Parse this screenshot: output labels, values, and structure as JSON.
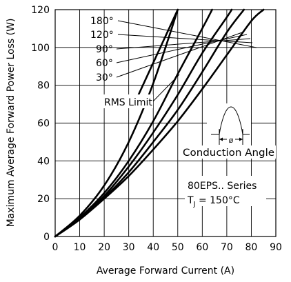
{
  "chart_data": {
    "type": "line",
    "xlabel": "Average Forward Current (A)",
    "ylabel": "Maximum Average Forward Power Loss (W)",
    "xlim": [
      0,
      90
    ],
    "ylim": [
      0,
      120
    ],
    "x_ticks": [
      "0",
      "10",
      "20",
      "30",
      "40",
      "50",
      "60",
      "70",
      "80",
      "90"
    ],
    "y_ticks": [
      "0",
      "20",
      "40",
      "60",
      "80",
      "100",
      "120"
    ],
    "grid": true,
    "series": [
      {
        "name": "180°",
        "x": [
          0,
          10,
          20,
          30,
          40,
          50,
          60,
          70,
          80,
          85
        ],
        "y": [
          0,
          9,
          20,
          32,
          46,
          61,
          78,
          96,
          114,
          120
        ]
      },
      {
        "name": "120°",
        "x": [
          0,
          10,
          20,
          30,
          40,
          50,
          60,
          70,
          77
        ],
        "y": [
          0,
          9,
          20.5,
          34,
          50,
          67,
          87,
          108,
          120
        ]
      },
      {
        "name": "90°",
        "x": [
          0,
          10,
          20,
          30,
          40,
          50,
          60,
          70,
          72
        ],
        "y": [
          0,
          9.5,
          21.5,
          37,
          55,
          75,
          97,
          116,
          120
        ]
      },
      {
        "name": "60°",
        "x": [
          0,
          10,
          20,
          30,
          40,
          50,
          60,
          64
        ],
        "y": [
          0,
          10,
          23,
          40,
          61,
          86,
          110,
          120
        ]
      },
      {
        "name": "30°",
        "x": [
          0,
          10,
          20,
          30,
          40,
          50
        ],
        "y": [
          0,
          11,
          27,
          50,
          81,
          120
        ]
      }
    ],
    "rms_limit": {
      "label": "RMS Limit",
      "x": [
        34,
        50
      ],
      "y": [
        75,
        120
      ]
    },
    "annotations": {
      "legend_labels": [
        "180°",
        "120°",
        "90°",
        "60°",
        "30°"
      ],
      "rms_label": "RMS Limit",
      "inset_label": "Conduction Angle",
      "inset_symbol": "ø",
      "device_line1": "80EPS.. Series",
      "device_line2_prefix": "T",
      "device_line2_sub": "J",
      "device_line2_suffix": " = 150°C"
    }
  }
}
